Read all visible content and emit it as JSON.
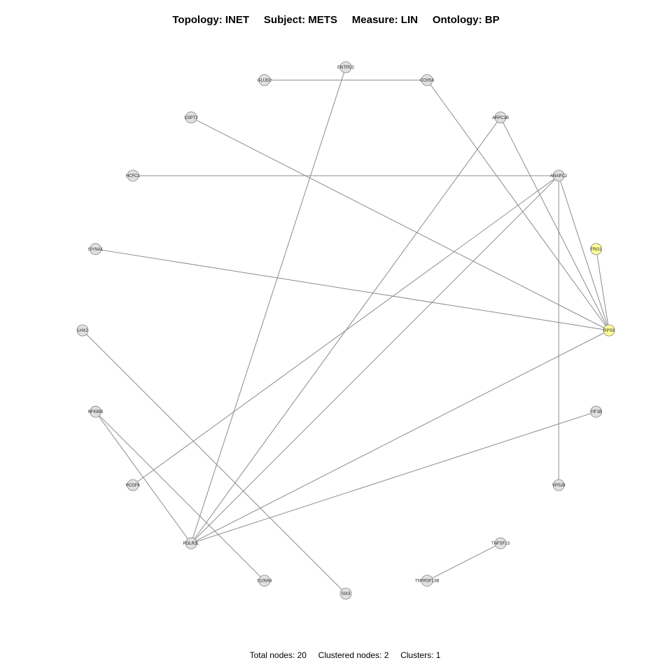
{
  "title": {
    "topology": "Topology: INET",
    "subject": "Subject: METS",
    "measure": "Measure: LIN",
    "ontology": "Ontology: BP"
  },
  "footer": {
    "total_nodes": "Total nodes: 20",
    "clustered_nodes": "Clustered nodes: 2",
    "clusters": "Clusters: 1"
  },
  "colors": {
    "node_default": "#e0e0e0",
    "node_clustered": "#ffff99",
    "node_stroke": "#888888",
    "edge": "#8c8c8c"
  },
  "nodes": [
    {
      "id": "ENTPD2",
      "clustered": false
    },
    {
      "id": "COX5A",
      "clustered": false
    },
    {
      "id": "ARPC1B",
      "clustered": false
    },
    {
      "id": "ANAPC2",
      "clustered": false
    },
    {
      "id": "FRG1",
      "clustered": true
    },
    {
      "id": "RPS9",
      "clustered": true
    },
    {
      "id": "YIF1B",
      "clustered": false
    },
    {
      "id": "VPS28",
      "clustered": false
    },
    {
      "id": "TNFSF13",
      "clustered": false
    },
    {
      "id": "TNFRSF13B",
      "clustered": false
    },
    {
      "id": "SIX3",
      "clustered": false
    },
    {
      "id": "S100A8",
      "clustered": false
    },
    {
      "id": "POLR2L",
      "clustered": false
    },
    {
      "id": "PCGF6",
      "clustered": false
    },
    {
      "id": "NFKBIB",
      "clustered": false
    },
    {
      "id": "LHX2",
      "clustered": false
    },
    {
      "id": "ISYNA1",
      "clustered": false
    },
    {
      "id": "HCFC1",
      "clustered": false
    },
    {
      "id": "CSPT2",
      "clustered": false
    },
    {
      "id": "GLUD2",
      "clustered": false
    }
  ],
  "edges": [
    [
      "GLUD2",
      "COX5A"
    ],
    [
      "COX5A",
      "RPS9"
    ],
    [
      "ENTPD2",
      "POLR2L"
    ],
    [
      "CSPT2",
      "RPS9"
    ],
    [
      "ARPC1B",
      "RPS9"
    ],
    [
      "ARPC1B",
      "POLR2L"
    ],
    [
      "HCFC1",
      "ANAPC2"
    ],
    [
      "ANAPC2",
      "RPS9"
    ],
    [
      "ANAPC2",
      "VPS28"
    ],
    [
      "ANAPC2",
      "PCGF6"
    ],
    [
      "ANAPC2",
      "POLR2L"
    ],
    [
      "FRG1",
      "RPS9"
    ],
    [
      "ISYNA1",
      "RPS9"
    ],
    [
      "RPS9",
      "POLR2L"
    ],
    [
      "YIF1B",
      "POLR2L"
    ],
    [
      "LHX2",
      "SIX3"
    ],
    [
      "NFKBIB",
      "S100A8"
    ],
    [
      "NFKBIB",
      "POLR2L"
    ],
    [
      "TNFSF13",
      "TNFRSF13B"
    ]
  ]
}
